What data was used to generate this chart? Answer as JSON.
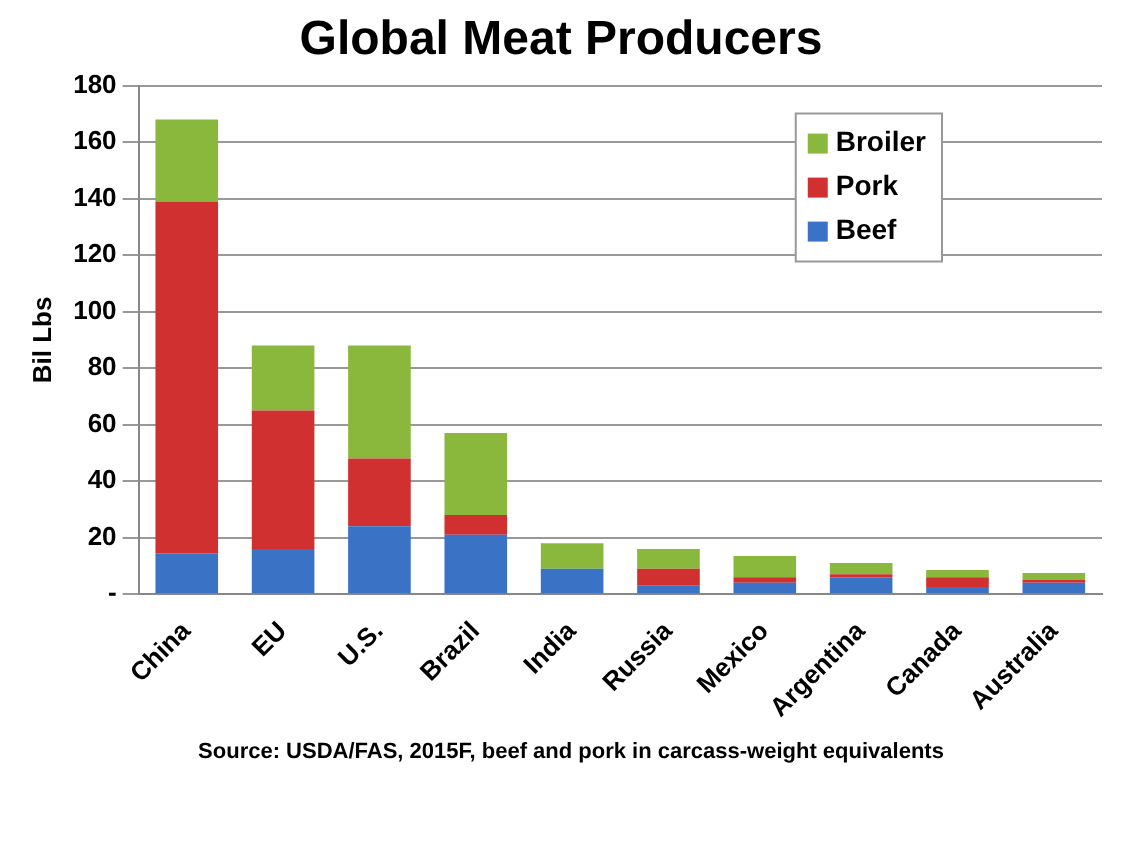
{
  "chart_data": {
    "type": "bar",
    "title": "Global Meat Producers",
    "ylabel": "Bil Lbs",
    "categories": [
      "China",
      "EU",
      "U.S.",
      "Brazil",
      "India",
      "Russia",
      "Mexico",
      "Argentina",
      "Canada",
      "Australia"
    ],
    "stacked": true,
    "series": [
      {
        "name": "Beef",
        "color": "#3a73c6",
        "values": [
          14.5,
          16,
          24,
          21,
          9,
          3,
          4,
          6,
          2.5,
          4
        ]
      },
      {
        "name": "Pork",
        "color": "#d03030",
        "values": [
          124.5,
          49,
          24,
          7,
          0,
          6,
          2,
          1,
          3.5,
          1
        ]
      },
      {
        "name": "Broiler",
        "color": "#8ab83c",
        "values": [
          29,
          23,
          40,
          29,
          9,
          7,
          7.5,
          4,
          2.5,
          2.5
        ]
      }
    ],
    "ylim": [
      0,
      180
    ],
    "yticks": [
      {
        "value": 0,
        "label": "-"
      },
      20,
      40,
      60,
      80,
      100,
      120,
      140,
      160,
      180
    ],
    "grid": "y",
    "legend": "top right",
    "annotations": [
      "Source:  USDA/FAS, 2015F, beef and pork in carcass-weight equivalents"
    ]
  }
}
